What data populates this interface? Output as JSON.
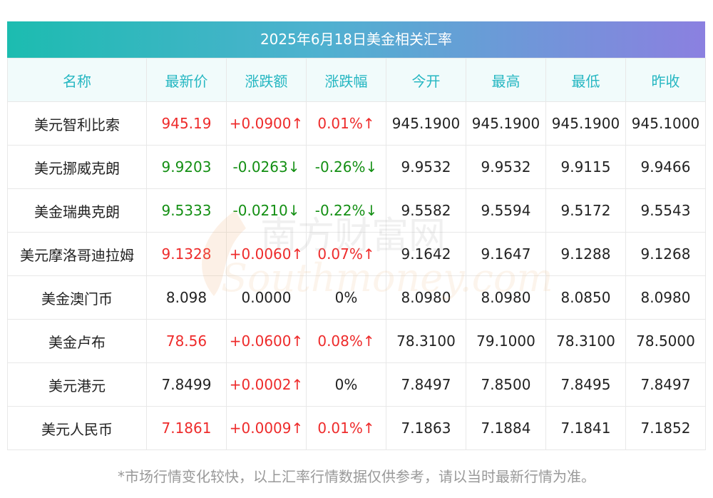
{
  "title": "2025年6月18日美金相关汇率",
  "columns": [
    "名称",
    "最新价",
    "涨跌额",
    "涨跌幅",
    "今开",
    "最高",
    "最低",
    "昨收"
  ],
  "rows": [
    {
      "name": "美元智利比索",
      "last": "945.19",
      "change": "+0.0900↑",
      "pct": "0.01%↑",
      "open": "945.1900",
      "high": "945.1900",
      "low": "945.1900",
      "prev": "945.1000",
      "trend": "up"
    },
    {
      "name": "美元挪威克朗",
      "last": "9.9203",
      "change": "-0.0263↓",
      "pct": "-0.26%↓",
      "open": "9.9532",
      "high": "9.9532",
      "low": "9.9115",
      "prev": "9.9466",
      "trend": "down"
    },
    {
      "name": "美金瑞典克朗",
      "last": "9.5333",
      "change": "-0.0210↓",
      "pct": "-0.22%↓",
      "open": "9.5582",
      "high": "9.5594",
      "low": "9.5172",
      "prev": "9.5543",
      "trend": "down"
    },
    {
      "name": "美元摩洛哥迪拉姆",
      "last": "9.1328",
      "change": "+0.0060↑",
      "pct": "0.07%↑",
      "open": "9.1642",
      "high": "9.1647",
      "low": "9.1288",
      "prev": "9.1268",
      "trend": "up"
    },
    {
      "name": "美金澳门币",
      "last": "8.098",
      "change": "0.0000",
      "pct": "0%",
      "open": "8.0980",
      "high": "8.0980",
      "low": "8.0850",
      "prev": "8.0980",
      "trend": "flat"
    },
    {
      "name": "美金卢布",
      "last": "78.56",
      "change": "+0.0600↑",
      "pct": "0.08%↑",
      "open": "78.3100",
      "high": "79.1000",
      "low": "78.3100",
      "prev": "78.5000",
      "trend": "up"
    },
    {
      "name": "美元港元",
      "last": "7.8499",
      "change": "+0.0002↑",
      "pct": "0%",
      "open": "7.8497",
      "high": "7.8500",
      "low": "7.8495",
      "prev": "7.8497",
      "trend": "up-partial"
    },
    {
      "name": "美元人民币",
      "last": "7.1861",
      "change": "+0.0009↑",
      "pct": "0.01%↑",
      "open": "7.1863",
      "high": "7.1884",
      "low": "7.1841",
      "prev": "7.1852",
      "trend": "up"
    }
  ],
  "watermark": {
    "cn": "南方财富网",
    "en": "Southmoney.com"
  },
  "footnote": "*市场行情变化较快，以上汇率行情数据仅供参考，请以当时最新行情为准。",
  "colors": {
    "up": "#ee2b2b",
    "down": "#138f13",
    "header_text": "#26b7c2",
    "title_gradient_start": "#1cbcb0",
    "title_gradient_end": "#8b80e0"
  }
}
